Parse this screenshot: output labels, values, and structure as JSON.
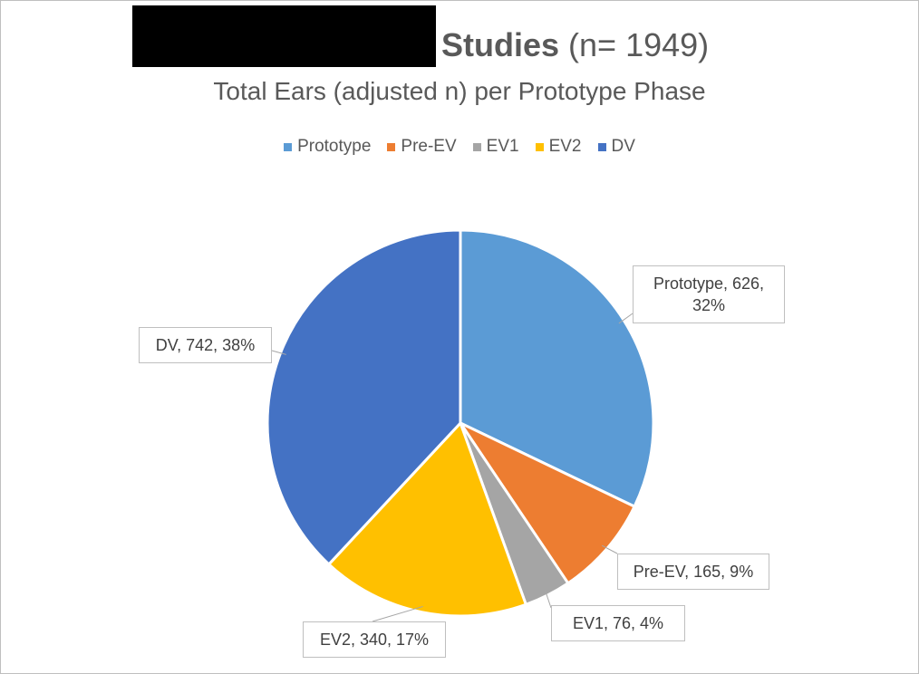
{
  "chart_data": {
    "type": "pie",
    "title": [
      "Studies",
      "(n= 1949)"
    ],
    "subtitle": "Total Ears (adjusted n) per Prototype Phase",
    "categories": [
      "Prototype",
      "Pre-EV",
      "EV1",
      "EV2",
      "DV"
    ],
    "values": [
      626,
      165,
      76,
      340,
      742
    ],
    "value_labels": [
      "Prototype, 626, 32%",
      "Pre-EV, 165, 9%",
      "EV1, 76, 4%",
      "EV2, 340, 17%",
      "DV, 742, 38%"
    ],
    "colors": [
      "#5b9bd5",
      "#ed7d31",
      "#a5a5a5",
      "#ffc000",
      "#4472c4"
    ],
    "legend": "top"
  }
}
